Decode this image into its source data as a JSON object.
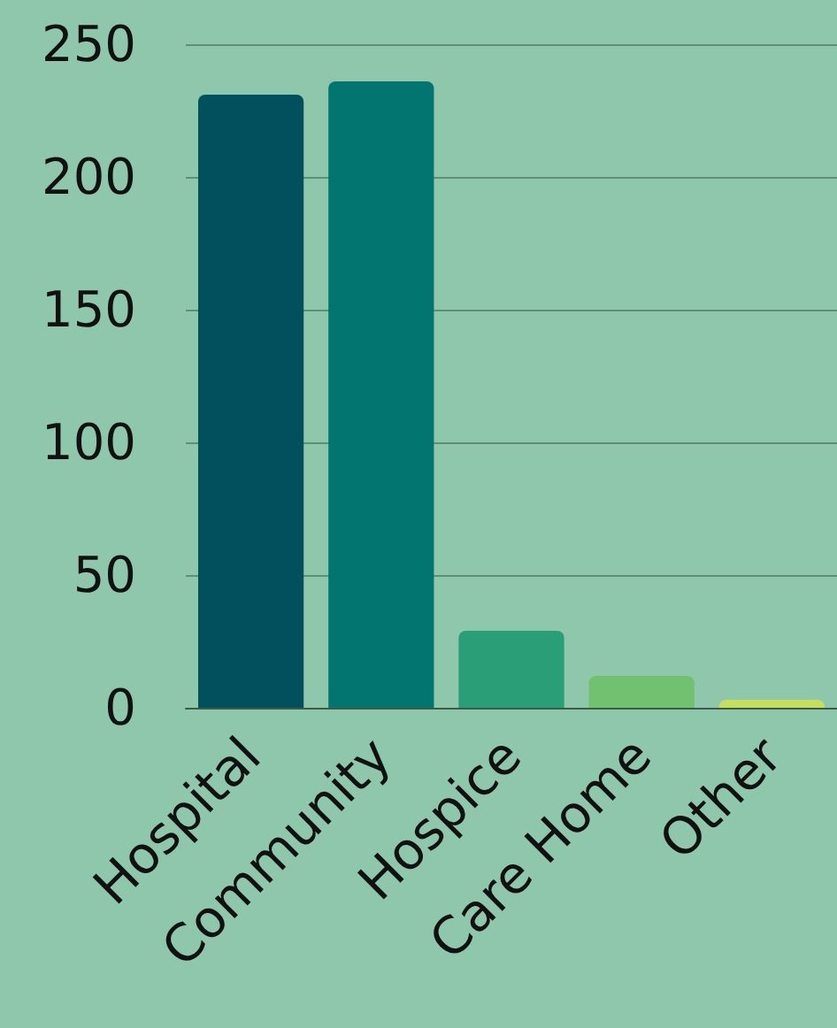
{
  "chart_data": {
    "type": "bar",
    "categories": [
      "Hospital",
      "Community",
      "Hospice",
      "Care Home",
      "Other"
    ],
    "values": [
      231,
      236,
      29,
      12,
      3
    ],
    "colors": [
      "#02505e",
      "#027570",
      "#2a9e77",
      "#72c170",
      "#c6de5c"
    ],
    "ylim": [
      0,
      250
    ],
    "yticks": [
      0,
      50,
      100,
      150,
      200,
      250
    ],
    "grid": "y"
  }
}
